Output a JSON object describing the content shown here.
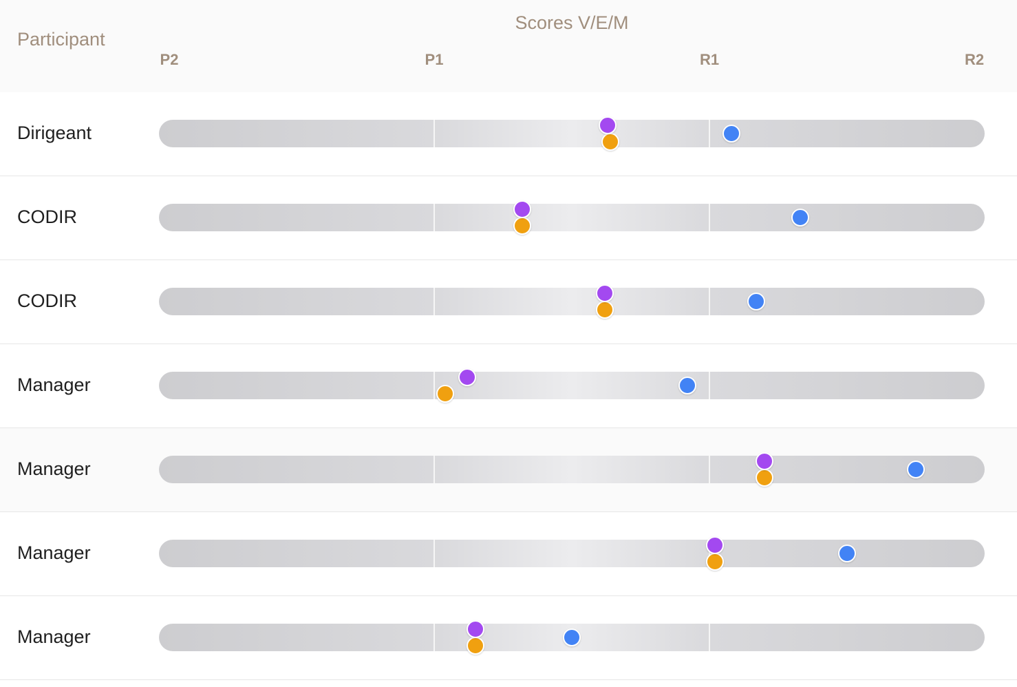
{
  "header": {
    "participant_label": "Participant",
    "scores_label": "Scores V/E/M"
  },
  "chart_data": {
    "type": "scatter",
    "x_ticks": [
      "P2",
      "P1",
      "R1",
      "R2"
    ],
    "xlim": [
      0,
      3
    ],
    "series_colors": {
      "violet": "#a349f0",
      "orange": "#f0a010",
      "blue": "#4283f5"
    },
    "rows": [
      {
        "label": "Dirigeant",
        "v": 1.63,
        "e": 1.64,
        "m": 2.08
      },
      {
        "label": "CODIR",
        "v": 1.32,
        "e": 1.32,
        "m": 2.33
      },
      {
        "label": "CODIR",
        "v": 1.62,
        "e": 1.62,
        "m": 2.17
      },
      {
        "label": "Manager",
        "v": 1.12,
        "e": 1.04,
        "m": 1.92
      },
      {
        "label": "Manager",
        "v": 2.2,
        "e": 2.2,
        "m": 2.75
      },
      {
        "label": "Manager",
        "v": 2.02,
        "e": 2.02,
        "m": 2.5
      },
      {
        "label": "Manager",
        "v": 1.15,
        "e": 1.15,
        "m": 1.5
      }
    ]
  }
}
